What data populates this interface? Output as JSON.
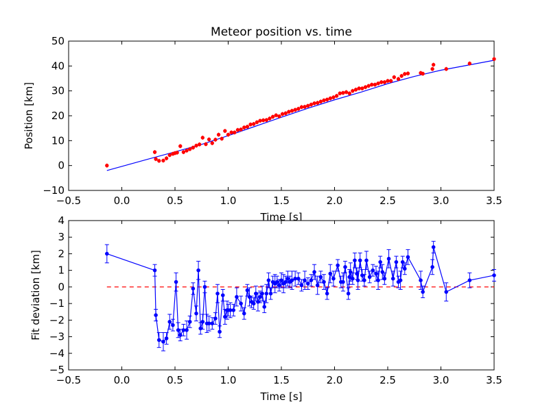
{
  "chart_data": [
    {
      "type": "scatter",
      "title": "Meteor position vs. time",
      "xlabel": "Time [s]",
      "ylabel": "Position [km]",
      "xlim": [
        -0.5,
        3.5
      ],
      "ylim": [
        -10,
        50
      ],
      "xticks": [
        "−0.5",
        "0.0",
        "0.5",
        "1.0",
        "1.5",
        "2.0",
        "2.5",
        "3.0",
        "3.5"
      ],
      "yticks": [
        "−10",
        "0",
        "10",
        "20",
        "30",
        "40",
        "50"
      ],
      "grid": false,
      "legend": "none",
      "colors": {
        "points": "#ff0000",
        "fit": "#0000ff",
        "axes": "#000000"
      },
      "series": [
        {
          "kind": "points-with-errorbars",
          "x": [
            -0.14,
            0.31,
            0.32,
            0.35,
            0.39,
            0.42,
            0.45,
            0.48,
            0.5,
            0.52,
            0.55,
            0.58,
            0.61,
            0.64,
            0.67,
            0.7,
            0.73,
            0.76,
            0.79,
            0.82,
            0.85,
            0.88,
            0.91,
            0.94,
            0.97,
            1.0,
            1.03,
            1.06,
            1.09,
            1.12,
            1.15,
            1.18,
            1.21,
            1.24,
            1.27,
            1.3,
            1.33,
            1.36,
            1.39,
            1.42,
            1.45,
            1.48,
            1.51,
            1.54,
            1.57,
            1.6,
            1.63,
            1.66,
            1.69,
            1.72,
            1.75,
            1.78,
            1.81,
            1.84,
            1.87,
            1.9,
            1.93,
            1.96,
            1.99,
            2.02,
            2.05,
            2.08,
            2.11,
            2.14,
            2.17,
            2.2,
            2.23,
            2.26,
            2.29,
            2.32,
            2.35,
            2.38,
            2.41,
            2.44,
            2.47,
            2.5,
            2.53,
            2.56,
            2.6,
            2.63,
            2.66,
            2.69,
            2.81,
            2.83,
            2.92,
            2.93,
            3.05,
            3.27,
            3.5
          ],
          "y": [
            0.0,
            5.4,
            2.6,
            1.9,
            2.0,
            2.9,
            4.2,
            4.7,
            5.0,
            5.2,
            7.8,
            5.4,
            6.0,
            6.6,
            7.2,
            8.0,
            8.5,
            11.2,
            8.6,
            10.5,
            9.0,
            10.4,
            12.4,
            10.8,
            13.9,
            12.4,
            13.3,
            13.3,
            14.3,
            14.5,
            15.3,
            15.6,
            16.5,
            16.7,
            17.4,
            18.0,
            18.2,
            18.3,
            18.9,
            19.6,
            20.2,
            19.8,
            20.7,
            21.0,
            21.6,
            22.0,
            22.4,
            22.8,
            23.5,
            23.6,
            24.0,
            24.5,
            25.0,
            25.2,
            25.7,
            26.2,
            26.5,
            27.0,
            27.4,
            28.0,
            29.0,
            29.2,
            29.5,
            29.0,
            30.0,
            30.5,
            31.0,
            31.0,
            31.5,
            32.0,
            32.5,
            32.5,
            33.0,
            33.5,
            33.5,
            34.0,
            34.0,
            35.5,
            34.8,
            36.0,
            36.8,
            37.0,
            37.2,
            36.9,
            38.8,
            40.5,
            38.8,
            41.0,
            42.8
          ]
        },
        {
          "kind": "fit-line",
          "x": [
            -0.14,
            0.25,
            0.5,
            0.75,
            1.0,
            1.25,
            1.5,
            1.75,
            2.0,
            2.25,
            2.5,
            2.75,
            3.0,
            3.25,
            3.5
          ],
          "y": [
            -2.0,
            2.6,
            5.5,
            8.5,
            12.0,
            15.7,
            19.4,
            23.0,
            26.4,
            29.5,
            32.9,
            35.8,
            38.3,
            40.3,
            42.3
          ]
        }
      ]
    },
    {
      "type": "line",
      "title": "",
      "xlabel": "Time [s]",
      "ylabel": "Fit deviation [km]",
      "xlim": [
        -0.5,
        3.5
      ],
      "ylim": [
        -5,
        4
      ],
      "xticks": [
        "−0.5",
        "0.0",
        "0.5",
        "1.0",
        "1.5",
        "2.0",
        "2.5",
        "3.0",
        "3.5"
      ],
      "yticks": [
        "−5",
        "−4",
        "−3",
        "−2",
        "−1",
        "0",
        "1",
        "2",
        "3",
        "4"
      ],
      "grid": false,
      "legend": "none",
      "colors": {
        "line": "#0000ff",
        "zero": "#ff0000",
        "axes": "#000000"
      },
      "series": [
        {
          "kind": "deviation-with-errorbars",
          "x": [
            -0.14,
            0.31,
            0.32,
            0.35,
            0.39,
            0.42,
            0.45,
            0.48,
            0.51,
            0.53,
            0.55,
            0.58,
            0.61,
            0.64,
            0.67,
            0.7,
            0.72,
            0.74,
            0.76,
            0.78,
            0.8,
            0.82,
            0.85,
            0.88,
            0.9,
            0.92,
            0.95,
            0.97,
            0.99,
            1.0,
            1.02,
            1.05,
            1.08,
            1.12,
            1.15,
            1.18,
            1.2,
            1.22,
            1.24,
            1.26,
            1.28,
            1.3,
            1.32,
            1.34,
            1.36,
            1.38,
            1.4,
            1.42,
            1.44,
            1.46,
            1.48,
            1.5,
            1.52,
            1.54,
            1.56,
            1.58,
            1.6,
            1.63,
            1.66,
            1.69,
            1.72,
            1.75,
            1.78,
            1.81,
            1.84,
            1.87,
            1.9,
            1.93,
            1.96,
            1.99,
            2.03,
            2.06,
            2.08,
            2.1,
            2.13,
            2.14,
            2.15,
            2.17,
            2.19,
            2.21,
            2.22,
            2.24,
            2.26,
            2.28,
            2.3,
            2.33,
            2.36,
            2.39,
            2.41,
            2.43,
            2.45,
            2.47,
            2.51,
            2.55,
            2.58,
            2.6,
            2.62,
            2.64,
            2.66,
            2.69,
            2.81,
            2.83,
            2.92,
            2.93,
            3.05,
            3.27,
            3.5
          ],
          "y": [
            2.0,
            1.0,
            -1.7,
            -3.2,
            -3.3,
            -3.1,
            -2.1,
            -2.3,
            0.3,
            -2.6,
            -2.9,
            -2.6,
            -2.6,
            -2.1,
            -0.1,
            -1.6,
            1.0,
            -2.5,
            -2.1,
            0.0,
            -2.2,
            -2.2,
            -2.2,
            -1.9,
            -0.4,
            -2.7,
            -0.5,
            -1.8,
            -1.4,
            -1.4,
            -1.4,
            -1.4,
            -0.6,
            -1.0,
            -1.6,
            -0.2,
            -0.6,
            -0.9,
            -1.0,
            -0.4,
            -0.9,
            -0.6,
            -0.4,
            -1.2,
            -0.4,
            0.4,
            -0.4,
            0.3,
            0.2,
            0.3,
            0.1,
            0.4,
            0.2,
            0.3,
            0.5,
            0.3,
            0.4,
            0.5,
            0.5,
            0.1,
            0.4,
            0.2,
            0.4,
            0.9,
            0.1,
            0.6,
            0.3,
            -0.4,
            0.8,
            0.5,
            1.3,
            0.3,
            0.3,
            1.2,
            -0.4,
            0.6,
            0.9,
            0.5,
            1.6,
            0.8,
            0.4,
            1.6,
            0.7,
            0.4,
            1.6,
            0.6,
            1.0,
            0.8,
            0.4,
            1.5,
            0.9,
            0.5,
            1.7,
            0.5,
            1.5,
            0.3,
            0.4,
            1.5,
            1.1,
            1.8,
            0.4,
            -0.3,
            1.2,
            2.4,
            -0.3,
            0.4,
            0.7
          ]
        },
        {
          "kind": "zero-reference",
          "x": [
            -0.14,
            3.5
          ],
          "y": [
            0,
            0
          ]
        }
      ]
    }
  ]
}
